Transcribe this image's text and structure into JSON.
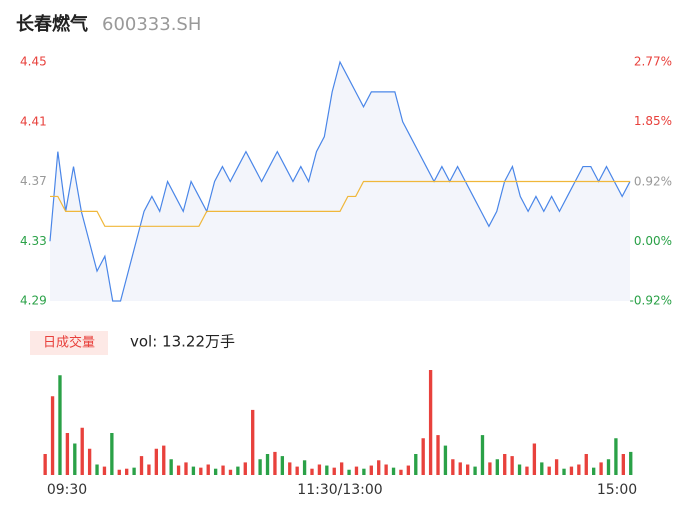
{
  "header": {
    "title": "长春燃气",
    "code": "600333.SH"
  },
  "chart_data": [
    {
      "type": "line",
      "ylim": [
        4.29,
        4.45
      ],
      "yticks": [
        4.45,
        4.41,
        4.37,
        4.33,
        4.29
      ],
      "ytick_colors": [
        "#e8413c",
        "#e8413c",
        "#999999",
        "#2aa147",
        "#2aa147"
      ],
      "y2lim": [
        -0.92,
        2.77
      ],
      "y2ticks": [
        {
          "value": 2.77,
          "label": "2.77%"
        },
        {
          "value": 1.85,
          "label": "1.85%"
        },
        {
          "value": 0.92,
          "label": "0.92%"
        },
        {
          "value": 0,
          "label": "0.00%"
        },
        {
          "value": -0.92,
          "label": "-0.92%"
        }
      ],
      "y2tick_colors": [
        "#e8413c",
        "#e8413c",
        "#999999",
        "#2aa147",
        "#2aa147"
      ],
      "series": [
        {
          "name": "price",
          "color": "#4a86e8",
          "values": [
            4.33,
            4.39,
            4.35,
            4.38,
            4.35,
            4.33,
            4.31,
            4.32,
            4.29,
            4.29,
            4.31,
            4.33,
            4.35,
            4.36,
            4.35,
            4.37,
            4.36,
            4.35,
            4.37,
            4.36,
            4.35,
            4.37,
            4.38,
            4.37,
            4.38,
            4.39,
            4.38,
            4.37,
            4.38,
            4.39,
            4.38,
            4.37,
            4.38,
            4.37,
            4.39,
            4.4,
            4.43,
            4.45,
            4.44,
            4.43,
            4.42,
            4.43,
            4.43,
            4.43,
            4.43,
            4.41,
            4.4,
            4.39,
            4.38,
            4.37,
            4.38,
            4.37,
            4.38,
            4.37,
            4.36,
            4.35,
            4.34,
            4.35,
            4.37,
            4.38,
            4.36,
            4.35,
            4.36,
            4.35,
            4.36,
            4.35,
            4.36,
            4.37,
            4.38,
            4.38,
            4.37,
            4.38,
            4.37,
            4.36,
            4.37
          ]
        },
        {
          "name": "average",
          "color": "#f0b73a",
          "values": [
            4.36,
            4.36,
            4.35,
            4.35,
            4.35,
            4.35,
            4.35,
            4.34,
            4.34,
            4.34,
            4.34,
            4.34,
            4.34,
            4.34,
            4.34,
            4.34,
            4.34,
            4.34,
            4.34,
            4.34,
            4.35,
            4.35,
            4.35,
            4.35,
            4.35,
            4.35,
            4.35,
            4.35,
            4.35,
            4.35,
            4.35,
            4.35,
            4.35,
            4.35,
            4.35,
            4.35,
            4.35,
            4.35,
            4.36,
            4.36,
            4.37,
            4.37,
            4.37,
            4.37,
            4.37,
            4.37,
            4.37,
            4.37,
            4.37,
            4.37,
            4.37,
            4.37,
            4.37,
            4.37,
            4.37,
            4.37,
            4.37,
            4.37,
            4.37,
            4.37,
            4.37,
            4.37,
            4.37,
            4.37,
            4.37,
            4.37,
            4.37,
            4.37,
            4.37,
            4.37,
            4.37,
            4.37,
            4.37,
            4.37,
            4.37
          ]
        }
      ]
    },
    {
      "type": "bar",
      "label": "日成交量",
      "vol": "vol: 13.22万手",
      "x_labels": [
        "09:30",
        "11:30/13:00",
        "15:00"
      ],
      "ylim": [
        0,
        100
      ],
      "values": [
        20,
        75,
        95,
        40,
        30,
        45,
        25,
        10,
        8,
        40,
        5,
        6,
        7,
        18,
        10,
        25,
        28,
        15,
        9,
        12,
        8,
        7,
        10,
        6,
        9,
        5,
        8,
        12,
        62,
        15,
        20,
        22,
        18,
        12,
        8,
        14,
        6,
        10,
        9,
        7,
        12,
        5,
        8,
        6,
        9,
        14,
        10,
        7,
        5,
        9,
        20,
        35,
        100,
        38,
        28,
        15,
        12,
        10,
        8,
        38,
        12,
        15,
        20,
        18,
        10,
        8,
        30,
        12,
        8,
        15,
        6,
        8,
        10,
        20,
        7,
        12,
        15,
        35,
        20,
        22
      ],
      "colors": [
        "#e8413c",
        "#e8413c",
        "#2aa147",
        "#e8413c",
        "#2aa147",
        "#e8413c",
        "#e8413c",
        "#2aa147",
        "#e8413c",
        "#2aa147",
        "#e8413c",
        "#e8413c",
        "#2aa147",
        "#e8413c",
        "#e8413c",
        "#e8413c",
        "#e8413c",
        "#2aa147",
        "#e8413c",
        "#e8413c",
        "#2aa147",
        "#e8413c",
        "#e8413c",
        "#2aa147",
        "#e8413c",
        "#e8413c",
        "#2aa147",
        "#e8413c",
        "#e8413c",
        "#2aa147",
        "#2aa147",
        "#e8413c",
        "#2aa147",
        "#e8413c",
        "#e8413c",
        "#2aa147",
        "#e8413c",
        "#e8413c",
        "#2aa147",
        "#e8413c",
        "#e8413c",
        "#2aa147",
        "#e8413c",
        "#2aa147",
        "#e8413c",
        "#e8413c",
        "#e8413c",
        "#2aa147",
        "#e8413c",
        "#e8413c",
        "#2aa147",
        "#e8413c",
        "#e8413c",
        "#e8413c",
        "#2aa147",
        "#e8413c",
        "#e8413c",
        "#e8413c",
        "#2aa147",
        "#2aa147",
        "#e8413c",
        "#2aa147",
        "#e8413c",
        "#e8413c",
        "#2aa147",
        "#e8413c",
        "#e8413c",
        "#2aa147",
        "#e8413c",
        "#e8413c",
        "#2aa147",
        "#e8413c",
        "#e8413c",
        "#e8413c",
        "#2aa147",
        "#e8413c",
        "#2aa147",
        "#2aa147",
        "#e8413c",
        "#2aa147"
      ]
    }
  ]
}
